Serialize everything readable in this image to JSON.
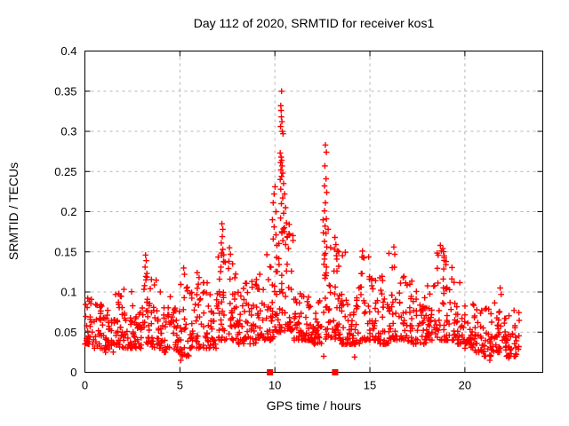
{
  "chart_data": {
    "type": "scatter",
    "title": "Day 112 of 2020, SRMTID for receiver kos1",
    "xlabel": "GPS time / hours",
    "ylabel": "SRMTID / TECUs",
    "xlim": [
      0,
      24.1
    ],
    "ylim": [
      0,
      0.4
    ],
    "xticks": [
      0,
      5,
      10,
      15,
      20
    ],
    "xtick_labels": [
      "0",
      "5",
      "10",
      "15",
      "20"
    ],
    "yticks": [
      0,
      0.05,
      0.1,
      0.15,
      0.2,
      0.25,
      0.3,
      0.35,
      0.4
    ],
    "ytick_labels": [
      "0",
      "0.05",
      "0.1",
      "0.15",
      "0.2",
      "0.25",
      "0.3",
      "0.35",
      "0.4"
    ],
    "grid": true,
    "legend_position": "none",
    "marker": "plus",
    "marker_color": "#ff0000",
    "grid_color": "#b3b3b3",
    "axis_color": "#000000",
    "background_color": "#ffffff",
    "series_name": "SRMTID",
    "data_x_end": 22.85,
    "axis_event_markers": {
      "shape": "filled-square",
      "color": "#ff0000",
      "y": 0,
      "x": [
        9.74,
        13.17
      ]
    },
    "scatter_bins_note": "each bin = [x_start, x_width, point_count, y_min, y_max]; dense noisy baseline read from plot",
    "scatter_bins": [
      [
        0.0,
        0.5,
        30,
        0.035,
        0.095
      ],
      [
        0.5,
        0.5,
        30,
        0.03,
        0.085
      ],
      [
        1.0,
        0.5,
        30,
        0.025,
        0.08
      ],
      [
        1.5,
        0.5,
        30,
        0.03,
        0.1
      ],
      [
        2.0,
        0.5,
        28,
        0.03,
        0.105
      ],
      [
        2.5,
        0.5,
        28,
        0.03,
        0.09
      ],
      [
        3.0,
        0.5,
        28,
        0.035,
        0.13
      ],
      [
        3.5,
        0.5,
        28,
        0.03,
        0.12
      ],
      [
        4.0,
        0.5,
        26,
        0.025,
        0.1
      ],
      [
        4.5,
        0.5,
        26,
        0.025,
        0.085
      ],
      [
        5.0,
        0.5,
        26,
        0.02,
        0.115
      ],
      [
        5.5,
        0.5,
        28,
        0.03,
        0.11
      ],
      [
        6.0,
        0.5,
        28,
        0.03,
        0.12
      ],
      [
        6.5,
        0.5,
        26,
        0.03,
        0.11
      ],
      [
        7.0,
        0.5,
        30,
        0.04,
        0.15
      ],
      [
        7.5,
        0.5,
        30,
        0.04,
        0.14
      ],
      [
        8.0,
        0.5,
        30,
        0.035,
        0.125
      ],
      [
        8.5,
        0.5,
        28,
        0.035,
        0.125
      ],
      [
        9.0,
        0.5,
        28,
        0.04,
        0.125
      ],
      [
        9.5,
        0.5,
        30,
        0.04,
        0.15
      ],
      [
        10.0,
        0.5,
        32,
        0.05,
        0.2
      ],
      [
        10.5,
        0.5,
        32,
        0.05,
        0.19
      ],
      [
        11.0,
        0.5,
        32,
        0.04,
        0.1
      ],
      [
        11.5,
        0.5,
        30,
        0.04,
        0.095
      ],
      [
        12.0,
        0.5,
        28,
        0.035,
        0.09
      ],
      [
        12.5,
        0.5,
        28,
        0.04,
        0.19
      ],
      [
        13.0,
        0.5,
        28,
        0.04,
        0.155
      ],
      [
        13.5,
        0.5,
        28,
        0.035,
        0.15
      ],
      [
        14.0,
        0.5,
        28,
        0.035,
        0.12
      ],
      [
        14.5,
        0.5,
        28,
        0.04,
        0.145
      ],
      [
        15.0,
        0.5,
        28,
        0.04,
        0.13
      ],
      [
        15.5,
        0.5,
        26,
        0.035,
        0.12
      ],
      [
        16.0,
        0.5,
        28,
        0.04,
        0.15
      ],
      [
        16.5,
        0.5,
        26,
        0.04,
        0.12
      ],
      [
        17.0,
        0.5,
        28,
        0.035,
        0.12
      ],
      [
        17.5,
        0.5,
        26,
        0.035,
        0.1
      ],
      [
        18.0,
        0.5,
        28,
        0.04,
        0.115
      ],
      [
        18.5,
        0.5,
        30,
        0.04,
        0.155
      ],
      [
        19.0,
        0.5,
        28,
        0.04,
        0.14
      ],
      [
        19.5,
        0.5,
        26,
        0.035,
        0.12
      ],
      [
        20.0,
        0.5,
        28,
        0.03,
        0.09
      ],
      [
        20.5,
        0.5,
        26,
        0.025,
        0.085
      ],
      [
        21.0,
        0.5,
        26,
        0.02,
        0.08
      ],
      [
        21.5,
        0.5,
        26,
        0.025,
        0.1
      ],
      [
        22.0,
        0.5,
        26,
        0.02,
        0.085
      ],
      [
        22.5,
        0.4,
        18,
        0.02,
        0.08
      ]
    ],
    "peak_points_note": "explicit [hour, TECU] points for the tall spike columns read from plot",
    "peak_points": [
      [
        10.35,
        0.35
      ],
      [
        10.31,
        0.332
      ],
      [
        10.33,
        0.326
      ],
      [
        10.34,
        0.318
      ],
      [
        10.37,
        0.312
      ],
      [
        10.3,
        0.306
      ],
      [
        10.39,
        0.3
      ],
      [
        10.43,
        0.297
      ],
      [
        10.28,
        0.273
      ],
      [
        10.33,
        0.268
      ],
      [
        10.36,
        0.264
      ],
      [
        10.3,
        0.261
      ],
      [
        10.38,
        0.257
      ],
      [
        10.32,
        0.252
      ],
      [
        10.41,
        0.248
      ],
      [
        10.35,
        0.244
      ],
      [
        10.28,
        0.24
      ],
      [
        10.46,
        0.235
      ],
      [
        10.31,
        0.228
      ],
      [
        10.51,
        0.222
      ],
      [
        10.41,
        0.217
      ],
      [
        10.34,
        0.21
      ],
      [
        10.56,
        0.205
      ],
      [
        10.46,
        0.198
      ],
      [
        10.3,
        0.192
      ],
      [
        10.61,
        0.186
      ],
      [
        10.5,
        0.18
      ],
      [
        10.36,
        0.175
      ],
      [
        10.66,
        0.169
      ],
      [
        10.42,
        0.164
      ],
      [
        10.56,
        0.159
      ],
      [
        10.71,
        0.154
      ],
      [
        9.87,
        0.19
      ],
      [
        9.91,
        0.211
      ],
      [
        9.96,
        0.222
      ],
      [
        10.01,
        0.231
      ],
      [
        10.06,
        0.2
      ],
      [
        9.96,
        0.181
      ],
      [
        10.06,
        0.171
      ],
      [
        9.91,
        0.166
      ],
      [
        10.11,
        0.158
      ],
      [
        12.66,
        0.283
      ],
      [
        12.71,
        0.274
      ],
      [
        12.63,
        0.257
      ],
      [
        12.69,
        0.241
      ],
      [
        12.61,
        0.232
      ],
      [
        12.73,
        0.224
      ],
      [
        12.66,
        0.211
      ],
      [
        12.61,
        0.201
      ],
      [
        12.71,
        0.191
      ],
      [
        12.64,
        0.182
      ],
      [
        12.69,
        0.173
      ],
      [
        12.61,
        0.163
      ],
      [
        12.73,
        0.156
      ],
      [
        12.66,
        0.148
      ],
      [
        12.61,
        0.141
      ],
      [
        12.71,
        0.131
      ],
      [
        12.63,
        0.121
      ],
      [
        13.16,
        0.168
      ],
      [
        13.21,
        0.159
      ],
      [
        13.31,
        0.151
      ],
      [
        13.26,
        0.141
      ],
      [
        13.36,
        0.132
      ],
      [
        13.11,
        0.126
      ],
      [
        7.21,
        0.185
      ],
      [
        7.26,
        0.178
      ],
      [
        7.23,
        0.169
      ],
      [
        7.18,
        0.161
      ],
      [
        7.26,
        0.153
      ],
      [
        7.21,
        0.146
      ],
      [
        7.31,
        0.138
      ],
      [
        7.16,
        0.131
      ],
      [
        3.19,
        0.146
      ],
      [
        3.23,
        0.139
      ],
      [
        3.17,
        0.131
      ],
      [
        3.26,
        0.123
      ],
      [
        3.21,
        0.115
      ],
      [
        3.14,
        0.108
      ],
      [
        5.2,
        0.13
      ],
      [
        5.24,
        0.122
      ],
      [
        5.91,
        0.124
      ],
      [
        6.01,
        0.118
      ],
      [
        7.61,
        0.155
      ],
      [
        7.66,
        0.147
      ],
      [
        14.61,
        0.151
      ],
      [
        14.66,
        0.143
      ],
      [
        16.26,
        0.156
      ],
      [
        16.31,
        0.147
      ],
      [
        18.71,
        0.158
      ],
      [
        18.76,
        0.151
      ],
      [
        18.91,
        0.145
      ],
      [
        19.01,
        0.138
      ],
      [
        21.86,
        0.105
      ],
      [
        21.91,
        0.097
      ]
    ],
    "outlier_points": [
      [
        5.05,
        0.015
      ],
      [
        12.57,
        0.02
      ],
      [
        14.2,
        0.019
      ],
      [
        21.31,
        0.015
      ],
      [
        22.31,
        0.018
      ]
    ]
  }
}
